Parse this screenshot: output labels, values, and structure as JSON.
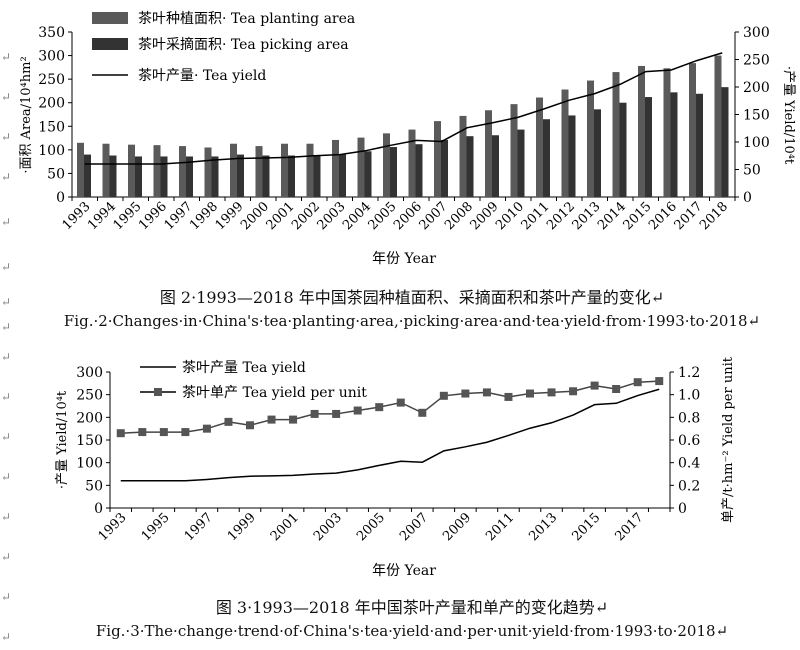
{
  "chart_data": [
    {
      "type": "bar+line",
      "categories": [
        "1993",
        "1994",
        "1995",
        "1996",
        "1997",
        "1998",
        "1999",
        "2000",
        "2001",
        "2002",
        "2003",
        "2004",
        "2005",
        "2006",
        "2007",
        "2008",
        "2009",
        "2010",
        "2011",
        "2012",
        "2013",
        "2014",
        "2015",
        "2016",
        "2017",
        "2018"
      ],
      "series": [
        {
          "name": "茶叶种植面积· Tea planting area",
          "type": "bar",
          "axis": "left",
          "color": "#5a5a5a",
          "values": [
            115,
            113,
            111,
            110,
            108,
            105,
            113,
            108,
            113,
            113,
            121,
            126,
            135,
            143,
            161,
            172,
            184,
            197,
            211,
            228,
            247,
            265,
            278,
            273,
            284,
            300
          ]
        },
        {
          "name": "茶叶采摘面积· Tea picking area",
          "type": "bar",
          "axis": "left",
          "color": "#333333",
          "values": [
            90,
            88,
            86,
            86,
            86,
            86,
            90,
            88,
            88,
            88,
            90,
            97,
            106,
            112,
            121,
            129,
            131,
            143,
            165,
            173,
            186,
            200,
            212,
            222,
            219,
            233
          ]
        },
        {
          "name": "茶叶产量· Tea yield",
          "type": "line",
          "axis": "right",
          "color": "#000000",
          "values": [
            60,
            60,
            60,
            60,
            63,
            67,
            70,
            71,
            72,
            75,
            77,
            84,
            94,
            103,
            101,
            126,
            135,
            145,
            160,
            176,
            188,
            205,
            228,
            231,
            248,
            262
          ]
        }
      ],
      "ylabel": "·面积 Area/10⁴hm²",
      "y2label": "·产量 Yield/10⁴t",
      "xlabel": "年份 Year",
      "ylim": [
        0,
        350
      ],
      "y2lim": [
        0,
        300
      ],
      "yticks": [
        0,
        50,
        100,
        150,
        200,
        250,
        300,
        350
      ],
      "y2ticks": [
        0,
        50,
        100,
        150,
        200,
        250,
        300
      ],
      "legend": "top-left",
      "grid": false
    },
    {
      "type": "line",
      "categories": [
        "1993",
        "1994",
        "1995",
        "1996",
        "1997",
        "1998",
        "1999",
        "2000",
        "2001",
        "2002",
        "2003",
        "2004",
        "2005",
        "2006",
        "2007",
        "2008",
        "2009",
        "2010",
        "2011",
        "2012",
        "2013",
        "2014",
        "2015",
        "2016",
        "2017",
        "2018"
      ],
      "xticklabels": [
        "1993",
        "1995",
        "1997",
        "1999",
        "2001",
        "2003",
        "2005",
        "2007",
        "2009",
        "2011",
        "2013",
        "2015",
        "2017"
      ],
      "series": [
        {
          "name": "茶叶产量 Tea yield",
          "axis": "left",
          "marker": "none",
          "values": [
            60,
            60,
            60,
            60,
            63,
            67,
            70,
            71,
            72,
            75,
            77,
            84,
            94,
            103,
            101,
            126,
            135,
            145,
            160,
            176,
            188,
            205,
            228,
            231,
            248,
            262
          ]
        },
        {
          "name": "茶叶单产 Tea yield per unit",
          "axis": "right",
          "marker": "square",
          "values": [
            0.66,
            0.67,
            0.67,
            0.67,
            0.7,
            0.76,
            0.73,
            0.78,
            0.78,
            0.83,
            0.83,
            0.86,
            0.89,
            0.93,
            0.84,
            0.99,
            1.01,
            1.02,
            0.98,
            1.01,
            1.02,
            1.03,
            1.08,
            1.05,
            1.11,
            1.12
          ]
        }
      ],
      "ylabel": "·产量 Yield/10⁴t",
      "y2label": "单产/t·hm⁻² Yield per unit",
      "xlabel": "年份 Year",
      "ylim": [
        0,
        300
      ],
      "y2lim": [
        0,
        1.2
      ],
      "yticks": [
        0,
        50,
        100,
        150,
        200,
        250,
        300
      ],
      "y2ticks": [
        "0",
        "0.2",
        "0.4",
        "0.6",
        "0.8",
        "1.0",
        "1.2"
      ],
      "legend": "top-left",
      "grid": false
    }
  ],
  "captions": {
    "fig2_cn": "图 2·1993—2018 年中国茶园种植面积、采摘面积和茶叶产量的变化↵",
    "fig2_en": "Fig.·2·Changes·in·China's·tea·planting·area,·picking·area·and·tea·yield·from·1993·to·2018↵",
    "fig3_cn": "图 3·1993—2018 年中国茶叶产量和单产的变化趋势↵",
    "fig3_en": "Fig.·3·The·change·trend·of·China's·tea·yield·and·per·unit·yield·from·1993·to·2018↵"
  },
  "paragraph_mark": "↵"
}
